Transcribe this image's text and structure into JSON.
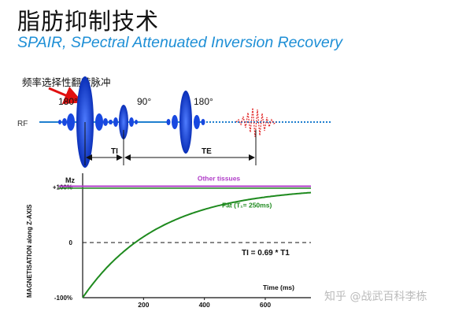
{
  "title": "脂肪抑制技术",
  "subtitle": "SPAIR, SPectral Attenuated Inversion Recovery",
  "pulse_annotation": "频率选择性翻转脉冲",
  "sequence": {
    "rf_label": "RF",
    "angle_first": "180°",
    "angle_second": "90°",
    "angle_third": "180°",
    "ti_label": "TI",
    "te_label": "TE",
    "colors": {
      "pulse": "#1040d8",
      "line": "#1f7fcf",
      "echo": "#e02020"
    }
  },
  "chart_data": {
    "type": "line",
    "ylabel": "MAGNETISATION along Z-AXIS",
    "xlabel": "Time (ms)",
    "y_axis_top_label": "Mz",
    "x_ticks": [
      200,
      400,
      600
    ],
    "y_ticks": [
      {
        "value": 100,
        "label": "+100%"
      },
      {
        "value": 0,
        "label": "0"
      },
      {
        "value": -100,
        "label": "-100%"
      }
    ],
    "xlim": [
      0,
      750
    ],
    "ylim": [
      -100,
      125
    ],
    "series": [
      {
        "name": "Other tissues",
        "color": "#b03cc8",
        "shape": "constant",
        "value": 100
      },
      {
        "name": "Fat (T₁= 250ms)",
        "color": "#1e8a1e",
        "shape": "inversion_recovery",
        "t1": 250
      }
    ],
    "annotation": "TI = 0.69 * T1",
    "zero_crossing_ms": 173
  },
  "watermark": "知乎 @战武百科李栋"
}
